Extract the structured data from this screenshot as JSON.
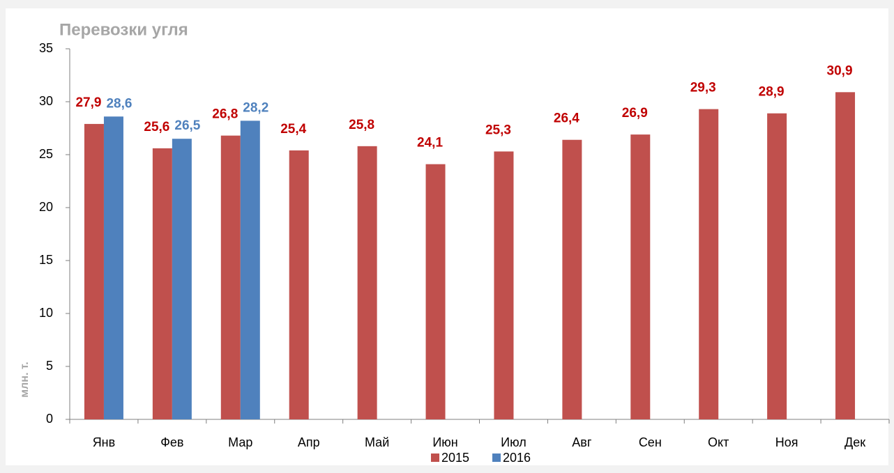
{
  "chart_data": {
    "type": "bar",
    "title": "Перевозки угля",
    "y_label": "млн. т.",
    "categories": [
      "Янв",
      "Фев",
      "Мар",
      "Апр",
      "Май",
      "Июн",
      "Июл",
      "Авг",
      "Сен",
      "Окт",
      "Ноя",
      "Дек"
    ],
    "series": [
      {
        "name": "2015",
        "color": "#c0504d",
        "values": [
          27.9,
          25.6,
          26.8,
          25.4,
          25.8,
          24.1,
          25.3,
          26.4,
          26.9,
          29.3,
          28.9,
          30.9
        ],
        "value_labels": [
          "27,9",
          "25,6",
          "26,8",
          "25,4",
          "25,8",
          "24,1",
          "25,3",
          "26,4",
          "26,9",
          "29,3",
          "28,9",
          "30,9"
        ]
      },
      {
        "name": "2016",
        "color": "#4f81bd",
        "values": [
          28.6,
          26.5,
          28.2,
          null,
          null,
          null,
          null,
          null,
          null,
          null,
          null,
          null
        ],
        "value_labels": [
          "28,6",
          "26,5",
          "28,2",
          null,
          null,
          null,
          null,
          null,
          null,
          null,
          null,
          null
        ]
      }
    ],
    "ylim": [
      0,
      35
    ],
    "yticks": [
      0,
      5,
      10,
      15,
      20,
      25,
      30,
      35
    ],
    "grid": false,
    "legend": "bottom"
  }
}
